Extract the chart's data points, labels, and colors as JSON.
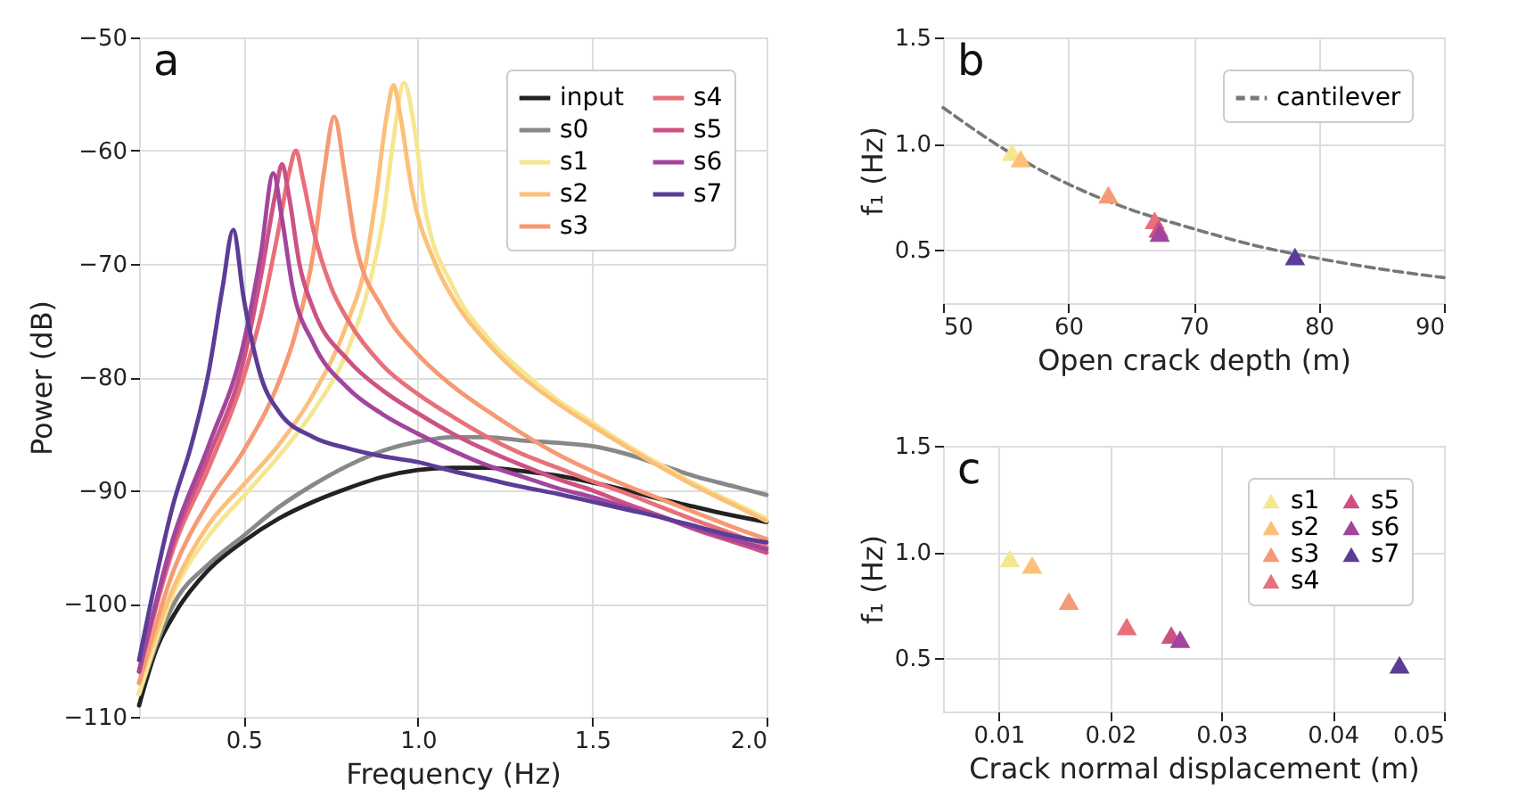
{
  "chart_data": [
    {
      "type": "line",
      "xlabel": "Frequency (Hz)",
      "ylabel": "Power (dB)",
      "annotations": [
        "a"
      ],
      "xlim": [
        0.2,
        2.0
      ],
      "xticks": [
        0.5,
        {
          "value": 1,
          "label": "1.0"
        },
        1.5,
        {
          "value": 2,
          "label": "2.0"
        }
      ],
      "ylim": [
        -110,
        -50
      ],
      "yticks": [
        -110,
        -100,
        -90,
        -80,
        -70,
        -60,
        -50
      ],
      "grid": true,
      "legend": "top right",
      "series": [
        {
          "name": "input",
          "color": "#222222",
          "x": [
            0.2,
            0.25,
            0.3,
            0.4,
            0.5,
            0.6,
            0.7,
            0.8,
            0.9,
            1.0,
            1.1,
            1.2,
            1.3,
            1.4,
            1.5,
            1.6,
            1.7,
            1.8,
            1.9,
            2.0
          ],
          "values": [
            -109,
            -104,
            -101,
            -97,
            -94.5,
            -92.5,
            -91,
            -89.8,
            -88.8,
            -88.2,
            -88,
            -88,
            -88.3,
            -88.7,
            -89.3,
            -90,
            -90.8,
            -91.5,
            -92.2,
            -92.8
          ]
        },
        {
          "name": "s0",
          "color": "#888888",
          "x": [
            0.2,
            0.3,
            0.4,
            0.5,
            0.6,
            0.7,
            0.8,
            0.9,
            1.0,
            1.1,
            1.2,
            1.3,
            1.4,
            1.5,
            1.6,
            1.7,
            1.8,
            1.9,
            2.0
          ],
          "values": [
            -108,
            -100,
            -96.5,
            -94,
            -91.5,
            -89.5,
            -87.8,
            -86.5,
            -85.7,
            -85.3,
            -85.3,
            -85.6,
            -85.8,
            -86.1,
            -86.8,
            -87.8,
            -88.8,
            -89.6,
            -90.4
          ]
        },
        {
          "name": "s1",
          "color": "#f6e68f",
          "x": [
            0.2,
            0.3,
            0.4,
            0.5,
            0.6,
            0.7,
            0.8,
            0.85,
            0.9,
            0.93,
            0.96,
            0.99,
            1.02,
            1.1,
            1.2,
            1.3,
            1.4,
            1.5,
            1.6,
            1.7,
            1.8,
            1.9,
            2.0
          ],
          "values": [
            -108,
            -99,
            -94,
            -90.5,
            -87,
            -83,
            -77.5,
            -73,
            -66,
            -59,
            -54,
            -58,
            -65,
            -72,
            -76.5,
            -79.5,
            -82,
            -84,
            -86,
            -87.8,
            -89.5,
            -91,
            -92.5
          ]
        },
        {
          "name": "s2",
          "color": "#fbc07a",
          "x": [
            0.2,
            0.3,
            0.4,
            0.5,
            0.6,
            0.7,
            0.8,
            0.85,
            0.88,
            0.91,
            0.93,
            0.95,
            0.98,
            1.05,
            1.1,
            1.2,
            1.3,
            1.4,
            1.5,
            1.6,
            1.7,
            1.8,
            1.9,
            2.0
          ],
          "values": [
            -107,
            -98.5,
            -93,
            -89.5,
            -86,
            -81.5,
            -75,
            -70,
            -64,
            -57,
            -54.2,
            -57,
            -63,
            -70,
            -73,
            -77,
            -80,
            -82.3,
            -84.3,
            -86.2,
            -88,
            -89.7,
            -91.2,
            -92.7
          ]
        },
        {
          "name": "s3",
          "color": "#f59a74",
          "x": [
            0.2,
            0.3,
            0.4,
            0.5,
            0.6,
            0.65,
            0.7,
            0.73,
            0.76,
            0.79,
            0.82,
            0.9,
            1.0,
            1.1,
            1.2,
            1.3,
            1.4,
            1.5,
            1.6,
            1.7,
            1.8,
            1.9,
            2.0
          ],
          "values": [
            -107,
            -97,
            -91,
            -86.5,
            -80.5,
            -76,
            -69,
            -62,
            -57,
            -62,
            -68,
            -74,
            -78,
            -80.8,
            -83,
            -85,
            -86.8,
            -88.3,
            -89.6,
            -90.8,
            -92,
            -93.2,
            -94.3
          ]
        },
        {
          "name": "s4",
          "color": "#e8707a",
          "x": [
            0.2,
            0.3,
            0.4,
            0.5,
            0.55,
            0.6,
            0.63,
            0.65,
            0.67,
            0.7,
            0.75,
            0.8,
            0.9,
            1.0,
            1.1,
            1.2,
            1.3,
            1.4,
            1.5,
            1.6,
            1.7,
            1.8,
            1.9,
            2.0
          ],
          "values": [
            -106,
            -95,
            -88,
            -80,
            -74.5,
            -67,
            -62,
            -60,
            -62.5,
            -67,
            -72,
            -75,
            -79,
            -81.5,
            -83.5,
            -85.3,
            -86.8,
            -88,
            -89.2,
            -90.3,
            -91.5,
            -92.7,
            -93.8,
            -95
          ]
        },
        {
          "name": "s5",
          "color": "#cd5284",
          "x": [
            0.2,
            0.3,
            0.4,
            0.5,
            0.55,
            0.59,
            0.61,
            0.63,
            0.66,
            0.7,
            0.8,
            0.9,
            1.0,
            1.1,
            1.2,
            1.3,
            1.4,
            1.5,
            1.6,
            1.7,
            1.8,
            1.9,
            2.0
          ],
          "values": [
            -106,
            -94.5,
            -87,
            -78.5,
            -71,
            -64,
            -61.2,
            -64,
            -70,
            -74,
            -78.5,
            -81.2,
            -83.2,
            -85,
            -86.5,
            -87.8,
            -89,
            -90,
            -91.2,
            -92.3,
            -93.5,
            -94.5,
            -95.5
          ]
        },
        {
          "name": "s6",
          "color": "#a3459c",
          "x": [
            0.2,
            0.3,
            0.4,
            0.5,
            0.55,
            0.585,
            0.61,
            0.64,
            0.7,
            0.8,
            0.9,
            1.0,
            1.1,
            1.2,
            1.3,
            1.4,
            1.5,
            1.6,
            1.7,
            1.8,
            1.9,
            2.0
          ],
          "values": [
            -106,
            -94,
            -86,
            -77,
            -69,
            -62,
            -66,
            -72,
            -77,
            -81,
            -83.3,
            -85,
            -86.5,
            -87.8,
            -88.8,
            -89.8,
            -90.6,
            -91.5,
            -92.4,
            -93.4,
            -94.3,
            -95.2
          ]
        },
        {
          "name": "s7",
          "color": "#5b3c96",
          "x": [
            0.2,
            0.3,
            0.35,
            0.4,
            0.44,
            0.47,
            0.5,
            0.55,
            0.6,
            0.7,
            0.8,
            0.9,
            1.0,
            1.1,
            1.2,
            1.3,
            1.4,
            1.5,
            1.6,
            1.7,
            1.8,
            1.9,
            2.0
          ],
          "values": [
            -105,
            -91,
            -86,
            -79.5,
            -72,
            -67,
            -73,
            -80,
            -83,
            -85.3,
            -86.3,
            -87,
            -87.5,
            -88.3,
            -89,
            -89.7,
            -90.3,
            -91,
            -91.7,
            -92.4,
            -93.2,
            -94,
            -94.6
          ]
        }
      ]
    },
    {
      "type": "scatter",
      "xlabel": "Open crack depth (m)",
      "ylabel": "f₁ (Hz)",
      "annotations": [
        "b"
      ],
      "xlim": [
        50,
        90
      ],
      "xticks": [
        50,
        60,
        70,
        80,
        90
      ],
      "ylim": [
        0.25,
        1.5
      ],
      "yticks": [
        0.5,
        {
          "value": 1,
          "label": "1.0"
        },
        1.5
      ],
      "grid": true,
      "legend": "top right",
      "marker": "triangle",
      "series": [
        {
          "name": "cantilever",
          "type": "line",
          "line_style": "dashed",
          "marker": "none",
          "color": "#777777",
          "x": [
            50,
            55,
            60,
            65,
            70,
            75,
            80,
            85,
            90
          ],
          "values": [
            1.17,
            0.97,
            0.81,
            0.69,
            0.6,
            0.52,
            0.46,
            0.41,
            0.37
          ]
        },
        {
          "color": "#f6e68f",
          "x": [
            55.5
          ],
          "values": [
            0.96
          ]
        },
        {
          "color": "#fbc07a",
          "x": [
            56.2
          ],
          "values": [
            0.93
          ]
        },
        {
          "color": "#f59a74",
          "x": [
            63.2
          ],
          "values": [
            0.76
          ]
        },
        {
          "color": "#e8707a",
          "x": [
            66.9
          ],
          "values": [
            0.64
          ]
        },
        {
          "color": "#cd5284",
          "x": [
            67.2
          ],
          "values": [
            0.6
          ]
        },
        {
          "color": "#a3459c",
          "x": [
            67.3
          ],
          "values": [
            0.58
          ]
        },
        {
          "color": "#5b3c96",
          "x": [
            78.1
          ],
          "values": [
            0.47
          ]
        }
      ]
    },
    {
      "type": "scatter",
      "xlabel": "Crack normal displacement (m)",
      "ylabel": "f₁ (Hz)",
      "annotations": [
        "c"
      ],
      "xlim": [
        0.005,
        0.05
      ],
      "xticks": [
        0.01,
        0.02,
        0.03,
        0.04,
        0.05
      ],
      "ylim": [
        0.25,
        1.5
      ],
      "yticks": [
        0.5,
        {
          "value": 1,
          "label": "1.0"
        },
        1.5
      ],
      "grid": true,
      "legend": "top right",
      "marker": "triangle",
      "series": [
        {
          "name": "s1",
          "color": "#f6e68f",
          "x": [
            0.011
          ],
          "values": [
            0.97
          ]
        },
        {
          "name": "s2",
          "color": "#fbc07a",
          "x": [
            0.013
          ],
          "values": [
            0.94
          ]
        },
        {
          "name": "s3",
          "color": "#f59a74",
          "x": [
            0.0163
          ],
          "values": [
            0.77
          ]
        },
        {
          "name": "s4",
          "color": "#e8707a",
          "x": [
            0.0215
          ],
          "values": [
            0.65
          ]
        },
        {
          "name": "s5",
          "color": "#cd5284",
          "x": [
            0.0255
          ],
          "values": [
            0.61
          ]
        },
        {
          "name": "s6",
          "color": "#a3459c",
          "x": [
            0.0263
          ],
          "values": [
            0.59
          ]
        },
        {
          "name": "s7",
          "color": "#5b3c96",
          "x": [
            0.046
          ],
          "values": [
            0.47
          ]
        }
      ]
    }
  ]
}
